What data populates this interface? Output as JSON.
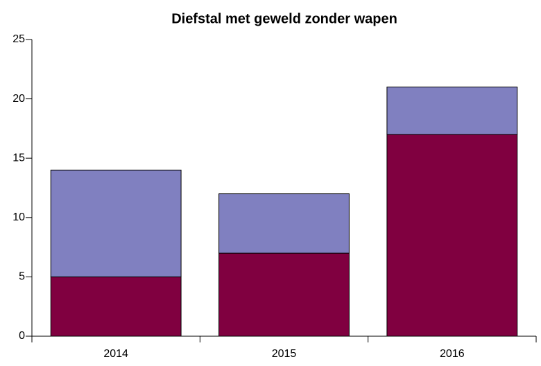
{
  "chart_data": {
    "type": "stacked_bar",
    "title": "Diefstal met geweld zonder wapen",
    "categories": [
      "2014",
      "2015",
      "2016"
    ],
    "series": [
      {
        "color": "#800040",
        "values": [
          5,
          7,
          17
        ]
      },
      {
        "color": "#8080c0",
        "values": [
          9,
          5,
          4
        ]
      }
    ],
    "ylim": [
      0,
      25
    ],
    "yticks": [
      0,
      5,
      10,
      15,
      20,
      25
    ]
  }
}
